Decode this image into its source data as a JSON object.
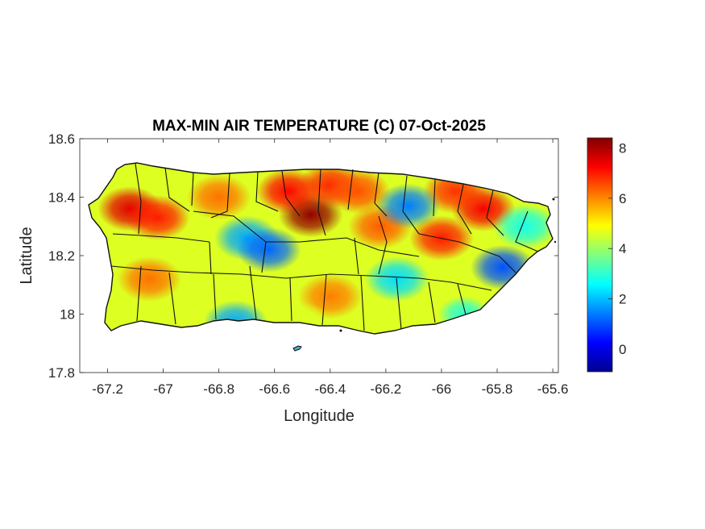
{
  "chart_data": {
    "type": "heatmap",
    "title": "MAX-MIN AIR TEMPERATURE (C) 07-Oct-2025",
    "xlabel": "Longitude",
    "ylabel": "Latitude",
    "xlim": [
      -67.3,
      -65.58
    ],
    "ylim": [
      17.8,
      18.6
    ],
    "xticks": [
      -67.2,
      -67.0,
      -66.8,
      -66.6,
      -66.4,
      -66.2,
      -66.0,
      -65.8,
      -65.6
    ],
    "xtick_labels": [
      "-67.2",
      "-67",
      "-66.8",
      "-66.6",
      "-66.4",
      "-66.2",
      "-66",
      "-65.8",
      "-65.6"
    ],
    "yticks": [
      17.8,
      18.0,
      18.2,
      18.4,
      18.6
    ],
    "ytick_labels": [
      "17.8",
      "18",
      "18.2",
      "18.4",
      "18.6"
    ],
    "colorbar": {
      "colormap": "jet",
      "range": [
        -0.9,
        8.4
      ],
      "ticks": [
        0,
        2,
        4,
        6,
        8
      ],
      "tick_labels": [
        "0",
        "2",
        "4",
        "6",
        "8"
      ]
    },
    "hotspots": [
      {
        "lon": -67.12,
        "lat": 18.36,
        "value": 7.5
      },
      {
        "lon": -67.02,
        "lat": 18.33,
        "value": 7.0
      },
      {
        "lon": -66.47,
        "lat": 18.34,
        "value": 8.2
      },
      {
        "lon": -66.55,
        "lat": 18.42,
        "value": 7.2
      },
      {
        "lon": -66.4,
        "lat": 18.44,
        "value": 6.9
      },
      {
        "lon": -66.3,
        "lat": 18.42,
        "value": 6.5
      },
      {
        "lon": -65.85,
        "lat": 18.36,
        "value": 7.3
      },
      {
        "lon": -65.95,
        "lat": 18.42,
        "value": 6.8
      },
      {
        "lon": -66.0,
        "lat": 18.26,
        "value": 7.0
      },
      {
        "lon": -66.22,
        "lat": 18.3,
        "value": 6.4
      },
      {
        "lon": -67.05,
        "lat": 18.12,
        "value": 6.2
      },
      {
        "lon": -66.4,
        "lat": 18.06,
        "value": 6.1
      },
      {
        "lon": -66.8,
        "lat": 18.4,
        "value": 6.2
      },
      {
        "lon": -66.7,
        "lat": 18.26,
        "value": 1.8
      },
      {
        "lon": -66.62,
        "lat": 18.22,
        "value": 1.2
      },
      {
        "lon": -66.12,
        "lat": 18.37,
        "value": 1.4
      },
      {
        "lon": -65.78,
        "lat": 18.16,
        "value": 1.0
      },
      {
        "lon": -65.7,
        "lat": 18.3,
        "value": 2.8
      },
      {
        "lon": -66.74,
        "lat": 17.97,
        "value": 1.8
      },
      {
        "lon": -66.16,
        "lat": 18.12,
        "value": 2.3
      },
      {
        "lon": -65.92,
        "lat": 18.0,
        "value": 3.0
      },
      {
        "lon": -66.5,
        "lat": 17.98,
        "value": 4.6
      }
    ]
  }
}
